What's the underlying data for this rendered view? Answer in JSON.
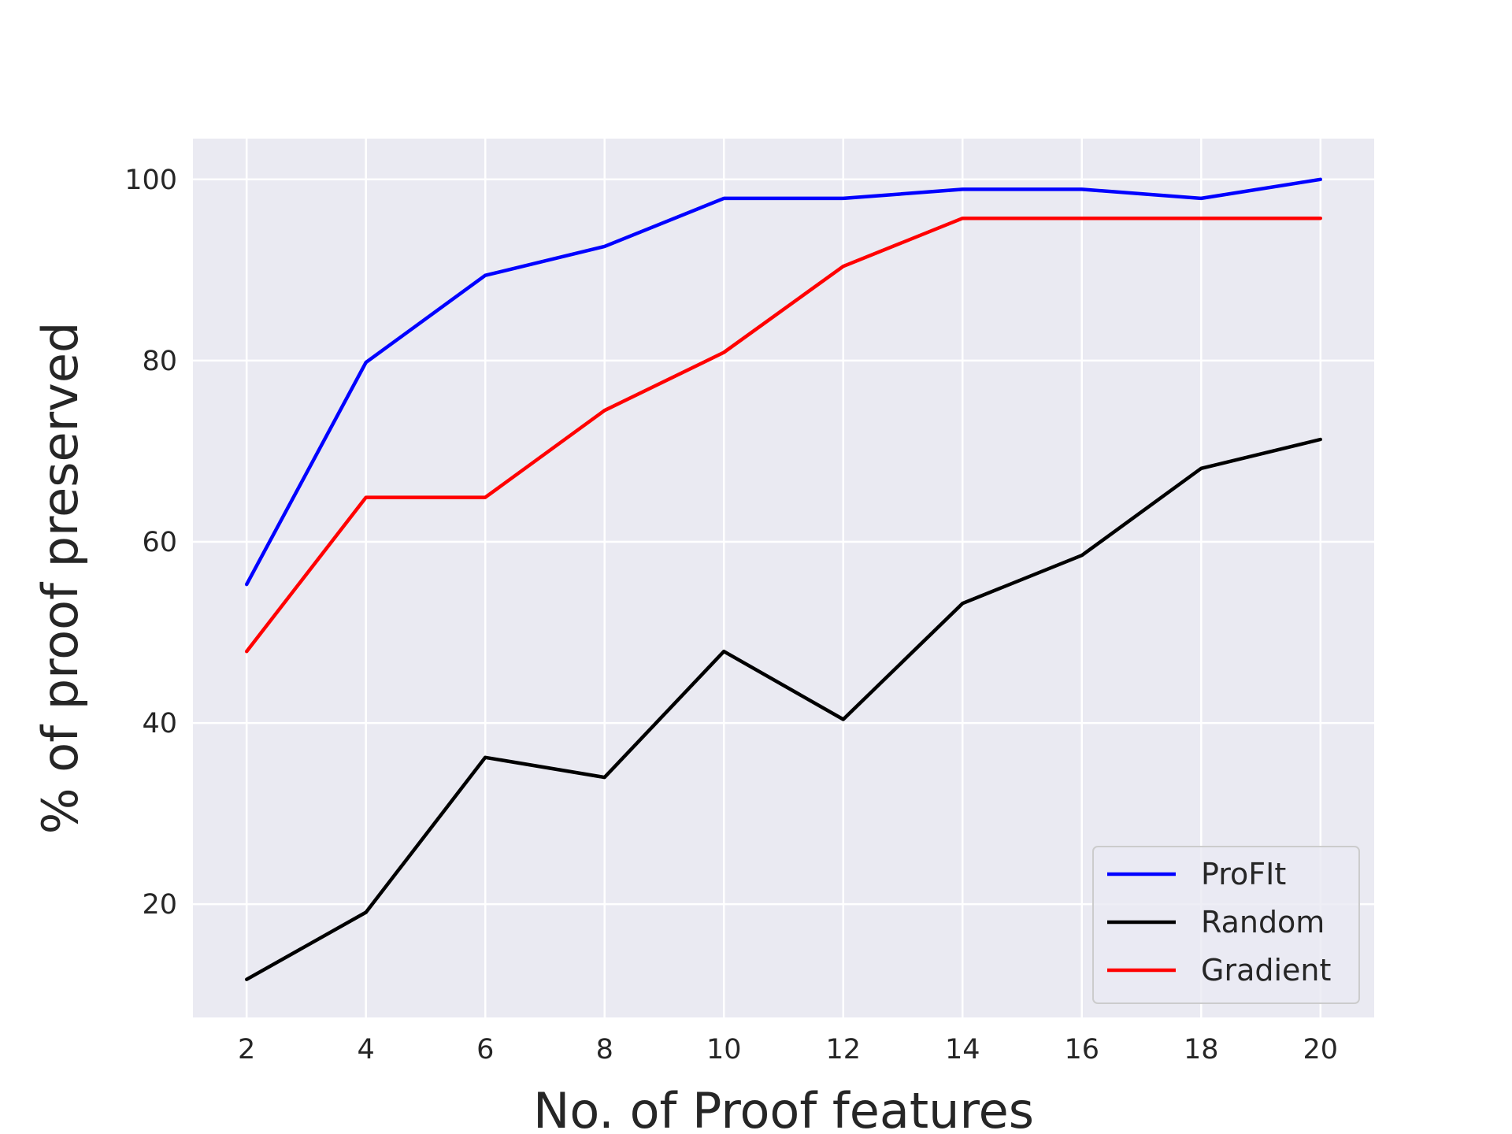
{
  "chart_data": {
    "type": "line",
    "title": "",
    "xlabel": "No. of Proof features",
    "ylabel": "% of proof preserved",
    "x": [
      2,
      4,
      6,
      8,
      10,
      12,
      14,
      16,
      18,
      20
    ],
    "xlim": [
      1.1,
      20.9
    ],
    "ylim": [
      7.5,
      104.5
    ],
    "xticks": [
      2,
      4,
      6,
      8,
      10,
      12,
      14,
      16,
      18,
      20
    ],
    "yticks": [
      20,
      40,
      60,
      80,
      100
    ],
    "grid": true,
    "legend_position": "bottom-right",
    "background_color": "#eaeaf2",
    "grid_color": "#ffffff",
    "series": [
      {
        "name": "ProFIt",
        "color": "#0000ff",
        "values": [
          55.3,
          79.8,
          89.4,
          92.6,
          97.9,
          97.9,
          98.9,
          98.9,
          97.9,
          100.0
        ]
      },
      {
        "name": "Random",
        "color": "#000000",
        "values": [
          11.7,
          19.1,
          36.2,
          34.0,
          47.9,
          40.4,
          53.2,
          58.5,
          68.1,
          71.3
        ]
      },
      {
        "name": "Gradient",
        "color": "#ff0000",
        "values": [
          47.9,
          64.9,
          64.9,
          74.5,
          80.9,
          90.4,
          95.7,
          95.7,
          95.7,
          95.7
        ]
      }
    ]
  }
}
